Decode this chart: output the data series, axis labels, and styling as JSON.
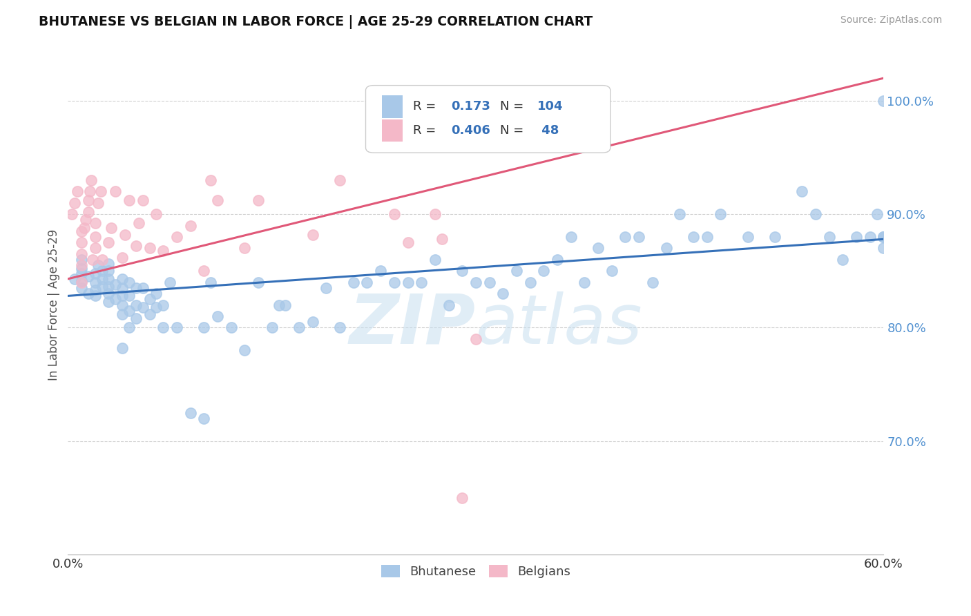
{
  "title": "BHUTANESE VS BELGIAN IN LABOR FORCE | AGE 25-29 CORRELATION CHART",
  "source_text": "Source: ZipAtlas.com",
  "ylabel": "In Labor Force | Age 25-29",
  "xlim": [
    0.0,
    0.6
  ],
  "ylim": [
    0.6,
    1.04
  ],
  "xtick_labels": [
    "0.0%",
    "",
    "",
    "",
    "",
    "",
    "60.0%"
  ],
  "xtick_values": [
    0.0,
    0.1,
    0.2,
    0.3,
    0.4,
    0.5,
    0.6
  ],
  "ytick_labels": [
    "100.0%",
    "90.0%",
    "80.0%",
    "70.0%"
  ],
  "ytick_values": [
    1.0,
    0.9,
    0.8,
    0.7
  ],
  "blue_color": "#a8c8e8",
  "pink_color": "#f4b8c8",
  "trend_blue": "#3570b8",
  "trend_pink": "#e05878",
  "r_blue": 0.173,
  "n_blue": 104,
  "r_pink": 0.406,
  "n_pink": 48,
  "legend_label_blue": "Bhutanese",
  "legend_label_pink": "Belgians",
  "watermark_color": "#c8dff0",
  "title_color": "#111111",
  "ytick_color": "#5090d0",
  "blue_points_x": [
    0.005,
    0.01,
    0.01,
    0.01,
    0.01,
    0.01,
    0.015,
    0.015,
    0.02,
    0.02,
    0.02,
    0.02,
    0.022,
    0.025,
    0.025,
    0.025,
    0.03,
    0.03,
    0.03,
    0.03,
    0.03,
    0.03,
    0.035,
    0.035,
    0.04,
    0.04,
    0.04,
    0.04,
    0.04,
    0.04,
    0.045,
    0.045,
    0.045,
    0.045,
    0.05,
    0.05,
    0.05,
    0.055,
    0.055,
    0.06,
    0.06,
    0.065,
    0.065,
    0.07,
    0.07,
    0.075,
    0.08,
    0.09,
    0.1,
    0.1,
    0.105,
    0.11,
    0.12,
    0.13,
    0.14,
    0.15,
    0.155,
    0.16,
    0.17,
    0.18,
    0.19,
    0.2,
    0.21,
    0.22,
    0.23,
    0.24,
    0.25,
    0.26,
    0.27,
    0.28,
    0.29,
    0.3,
    0.31,
    0.32,
    0.33,
    0.34,
    0.35,
    0.36,
    0.37,
    0.38,
    0.39,
    0.4,
    0.41,
    0.42,
    0.43,
    0.44,
    0.45,
    0.46,
    0.47,
    0.48,
    0.5,
    0.52,
    0.54,
    0.55,
    0.56,
    0.57,
    0.58,
    0.59,
    0.595,
    0.6,
    0.6,
    0.6,
    0.6,
    0.6
  ],
  "blue_points_y": [
    0.843,
    0.835,
    0.841,
    0.848,
    0.852,
    0.86,
    0.83,
    0.845,
    0.828,
    0.833,
    0.84,
    0.848,
    0.855,
    0.836,
    0.843,
    0.85,
    0.823,
    0.83,
    0.836,
    0.843,
    0.85,
    0.856,
    0.825,
    0.838,
    0.782,
    0.812,
    0.82,
    0.828,
    0.835,
    0.843,
    0.8,
    0.815,
    0.828,
    0.84,
    0.808,
    0.82,
    0.835,
    0.818,
    0.835,
    0.812,
    0.825,
    0.818,
    0.83,
    0.8,
    0.82,
    0.84,
    0.8,
    0.725,
    0.72,
    0.8,
    0.84,
    0.81,
    0.8,
    0.78,
    0.84,
    0.8,
    0.82,
    0.82,
    0.8,
    0.805,
    0.835,
    0.8,
    0.84,
    0.84,
    0.85,
    0.84,
    0.84,
    0.84,
    0.86,
    0.82,
    0.85,
    0.84,
    0.84,
    0.83,
    0.85,
    0.84,
    0.85,
    0.86,
    0.88,
    0.84,
    0.87,
    0.85,
    0.88,
    0.88,
    0.84,
    0.87,
    0.9,
    0.88,
    0.88,
    0.9,
    0.88,
    0.88,
    0.92,
    0.9,
    0.88,
    0.86,
    0.88,
    0.88,
    0.9,
    0.87,
    0.88,
    0.88,
    0.88,
    1.0
  ],
  "pink_points_x": [
    0.003,
    0.005,
    0.007,
    0.01,
    0.01,
    0.01,
    0.01,
    0.01,
    0.012,
    0.013,
    0.015,
    0.015,
    0.016,
    0.017,
    0.018,
    0.02,
    0.02,
    0.02,
    0.022,
    0.024,
    0.025,
    0.03,
    0.032,
    0.035,
    0.04,
    0.042,
    0.045,
    0.05,
    0.052,
    0.055,
    0.06,
    0.065,
    0.07,
    0.08,
    0.09,
    0.1,
    0.105,
    0.11,
    0.13,
    0.14,
    0.18,
    0.2,
    0.24,
    0.25,
    0.27,
    0.275,
    0.29,
    0.3
  ],
  "pink_points_y": [
    0.9,
    0.91,
    0.92,
    0.84,
    0.855,
    0.865,
    0.875,
    0.885,
    0.888,
    0.895,
    0.902,
    0.912,
    0.92,
    0.93,
    0.86,
    0.87,
    0.88,
    0.892,
    0.91,
    0.92,
    0.86,
    0.875,
    0.888,
    0.92,
    0.862,
    0.882,
    0.912,
    0.872,
    0.892,
    0.912,
    0.87,
    0.9,
    0.868,
    0.88,
    0.89,
    0.85,
    0.93,
    0.912,
    0.87,
    0.912,
    0.882,
    0.93,
    0.9,
    0.875,
    0.9,
    0.878,
    0.65,
    0.79
  ],
  "blue_trend_x": [
    0.0,
    0.6
  ],
  "blue_trend_y": [
    0.828,
    0.878
  ],
  "pink_trend_x": [
    -0.01,
    0.6
  ],
  "pink_trend_y": [
    0.84,
    1.02
  ]
}
